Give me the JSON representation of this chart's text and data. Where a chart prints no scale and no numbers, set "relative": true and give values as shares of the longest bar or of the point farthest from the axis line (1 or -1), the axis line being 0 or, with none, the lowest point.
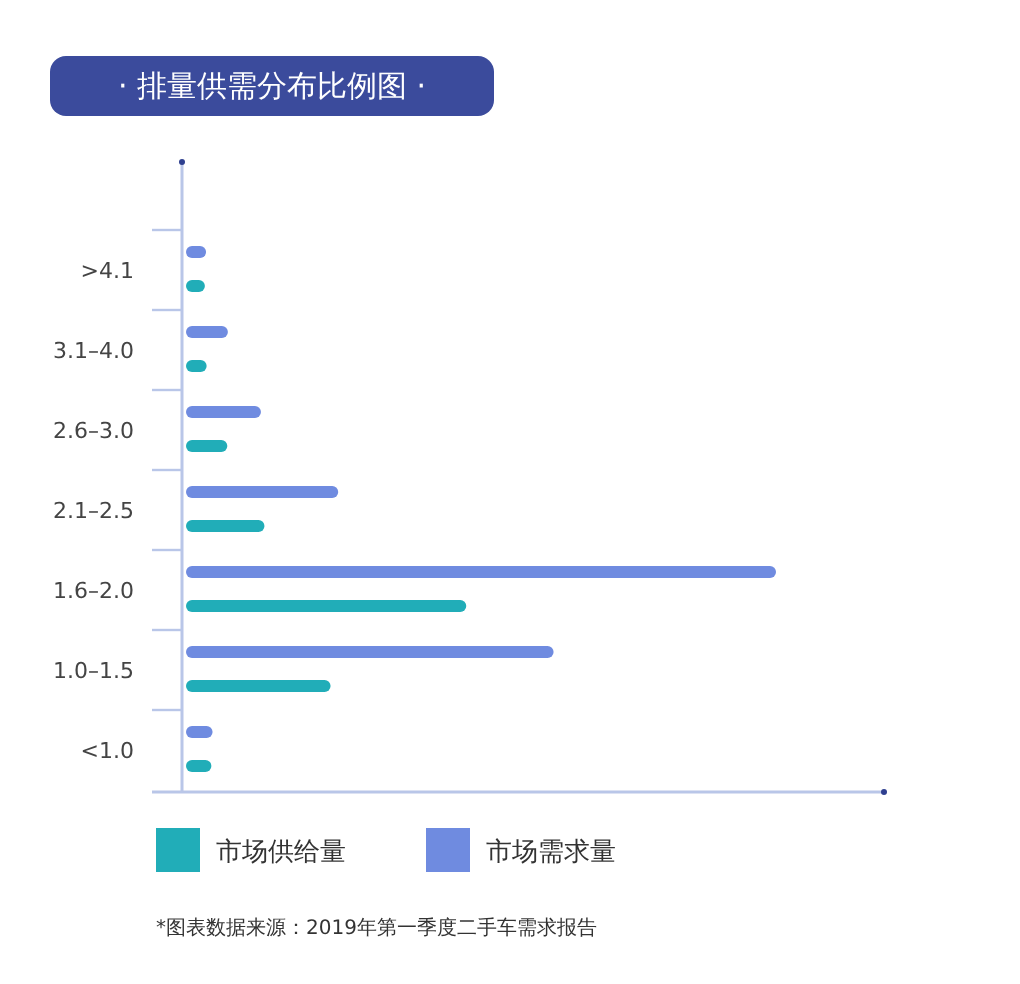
{
  "chart_data": {
    "type": "bar",
    "orientation": "horizontal",
    "relative": true,
    "title": "· 排量供需分布比例图 ·",
    "categories": [
      ">4.1",
      "3.1–4.0",
      "2.6–3.0",
      "2.1–2.5",
      "1.6–2.0",
      "1.0–1.5",
      "<1.0"
    ],
    "series": [
      {
        "name": "市场供给量",
        "color": "#21adb8",
        "values": [
          0.032,
          0.035,
          0.07,
          0.133,
          0.475,
          0.245,
          0.043
        ]
      },
      {
        "name": "市场需求量",
        "color": "#6f8be0",
        "values": [
          0.034,
          0.071,
          0.127,
          0.258,
          1,
          0.623,
          0.045
        ]
      }
    ],
    "legend": "bottom",
    "annotations": [
      "*图表数据来源：2019年第一季度二手车需求报告"
    ]
  }
}
